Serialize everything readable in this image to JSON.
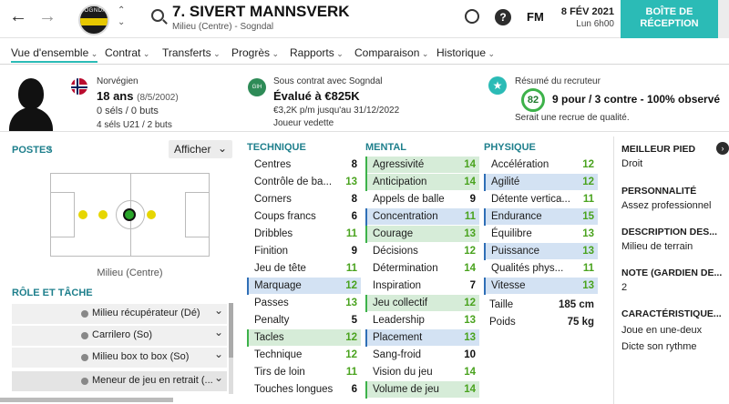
{
  "topbar": {
    "back_icon": "arrow-left-icon",
    "forward_icon": "arrow-right-icon",
    "club_badge_text": "SOGNDAL",
    "player_name": "7. SIVERT MANNSVERK",
    "player_subtitle": "Milieu (Centre) - Sogndal",
    "fm_label": "FM",
    "date": "8 FÉV 2021",
    "day_time": "Lun 6h00",
    "inbox_line1": "BOÎTE DE",
    "inbox_line2": "RÉCEPTION",
    "help_label": "?"
  },
  "tabs": [
    "Vue d'ensemble",
    "Contrat",
    "Transferts",
    "Progrès",
    "Rapports",
    "Comparaison",
    "Historique"
  ],
  "header": {
    "nationality": "Norvégien",
    "age": "18 ans",
    "dob": "(8/5/2002)",
    "caps": "0 séls / 0 buts",
    "u21": "4 séls U21 / 2 buts",
    "contract_label": "Sous contrat avec Sogndal",
    "contract_badge": "GIH",
    "value": "Évalué à €825K",
    "wage": "€3,2K p/m jusqu'au 31/12/2022",
    "status": "Joueur vedette",
    "scout_title": "Résumé du recruteur",
    "scout_score": "82",
    "scout_summary": "9 pour / 3 contre - 100% observé",
    "scout_note": "Serait une recrue de qualité."
  },
  "positions": {
    "title": "POSTES",
    "button": "Afficher",
    "pitch_label": "Milieu (Centre)",
    "role_title": "RÔLE ET TÂCHE",
    "roles": [
      "Milieu récupérateur (Dé)",
      "Carrilero (So)",
      "Milieu box to box (So)",
      "Meneur de jeu en retrait (..."
    ]
  },
  "technique": {
    "title": "TECHNIQUE",
    "items": [
      {
        "label": "Centres",
        "value": "8"
      },
      {
        "label": "Contrôle de ba...",
        "value": "13"
      },
      {
        "label": "Corners",
        "value": "8"
      },
      {
        "label": "Coups francs",
        "value": "6"
      },
      {
        "label": "Dribbles",
        "value": "11"
      },
      {
        "label": "Finition",
        "value": "9"
      },
      {
        "label": "Jeu de tête",
        "value": "11"
      },
      {
        "label": "Marquage",
        "value": "12"
      },
      {
        "label": "Passes",
        "value": "13"
      },
      {
        "label": "Penalty",
        "value": "5"
      },
      {
        "label": "Tacles",
        "value": "12"
      },
      {
        "label": "Technique",
        "value": "12"
      },
      {
        "label": "Tirs de loin",
        "value": "11"
      },
      {
        "label": "Touches longues",
        "value": "6"
      }
    ]
  },
  "mental": {
    "title": "MENTAL",
    "items": [
      {
        "label": "Agressivité",
        "value": "14"
      },
      {
        "label": "Anticipation",
        "value": "14"
      },
      {
        "label": "Appels de balle",
        "value": "9"
      },
      {
        "label": "Concentration",
        "value": "11"
      },
      {
        "label": "Courage",
        "value": "13"
      },
      {
        "label": "Décisions",
        "value": "12"
      },
      {
        "label": "Détermination",
        "value": "14"
      },
      {
        "label": "Inspiration",
        "value": "7"
      },
      {
        "label": "Jeu collectif",
        "value": "12"
      },
      {
        "label": "Leadership",
        "value": "13"
      },
      {
        "label": "Placement",
        "value": "13"
      },
      {
        "label": "Sang-froid",
        "value": "10"
      },
      {
        "label": "Vision du jeu",
        "value": "14"
      },
      {
        "label": "Volume de jeu",
        "value": "14"
      }
    ]
  },
  "physique": {
    "title": "PHYSIQUE",
    "items": [
      {
        "label": "Accélération",
        "value": "12"
      },
      {
        "label": "Agilité",
        "value": "12"
      },
      {
        "label": "Détente vertica...",
        "value": "11"
      },
      {
        "label": "Endurance",
        "value": "15"
      },
      {
        "label": "Équilibre",
        "value": "13"
      },
      {
        "label": "Puissance",
        "value": "13"
      },
      {
        "label": "Qualités phys...",
        "value": "11"
      },
      {
        "label": "Vitesse",
        "value": "13"
      }
    ],
    "height_label": "Taille",
    "height": "185 cm",
    "weight_label": "Poids",
    "weight": "75 kg"
  },
  "side": {
    "foot_title": "MEILLEUR PIED",
    "foot": "Droit",
    "personality_title": "PERSONNALITÉ",
    "personality": "Assez professionnel",
    "desc_title": "DESCRIPTION DES...",
    "desc": "Milieu de terrain",
    "gk_title": "NOTE (GARDIEN DE...",
    "gk": "2",
    "traits_title": "CARACTÉRISTIQUE...",
    "traits": [
      "Joue en une-deux",
      "Dicte son rythme"
    ]
  },
  "colors": {
    "accent": "#2bbbb6",
    "green": "#4aa31f",
    "blue_hl": "#d3e2f3",
    "green_hl": "#d6ecd8"
  }
}
